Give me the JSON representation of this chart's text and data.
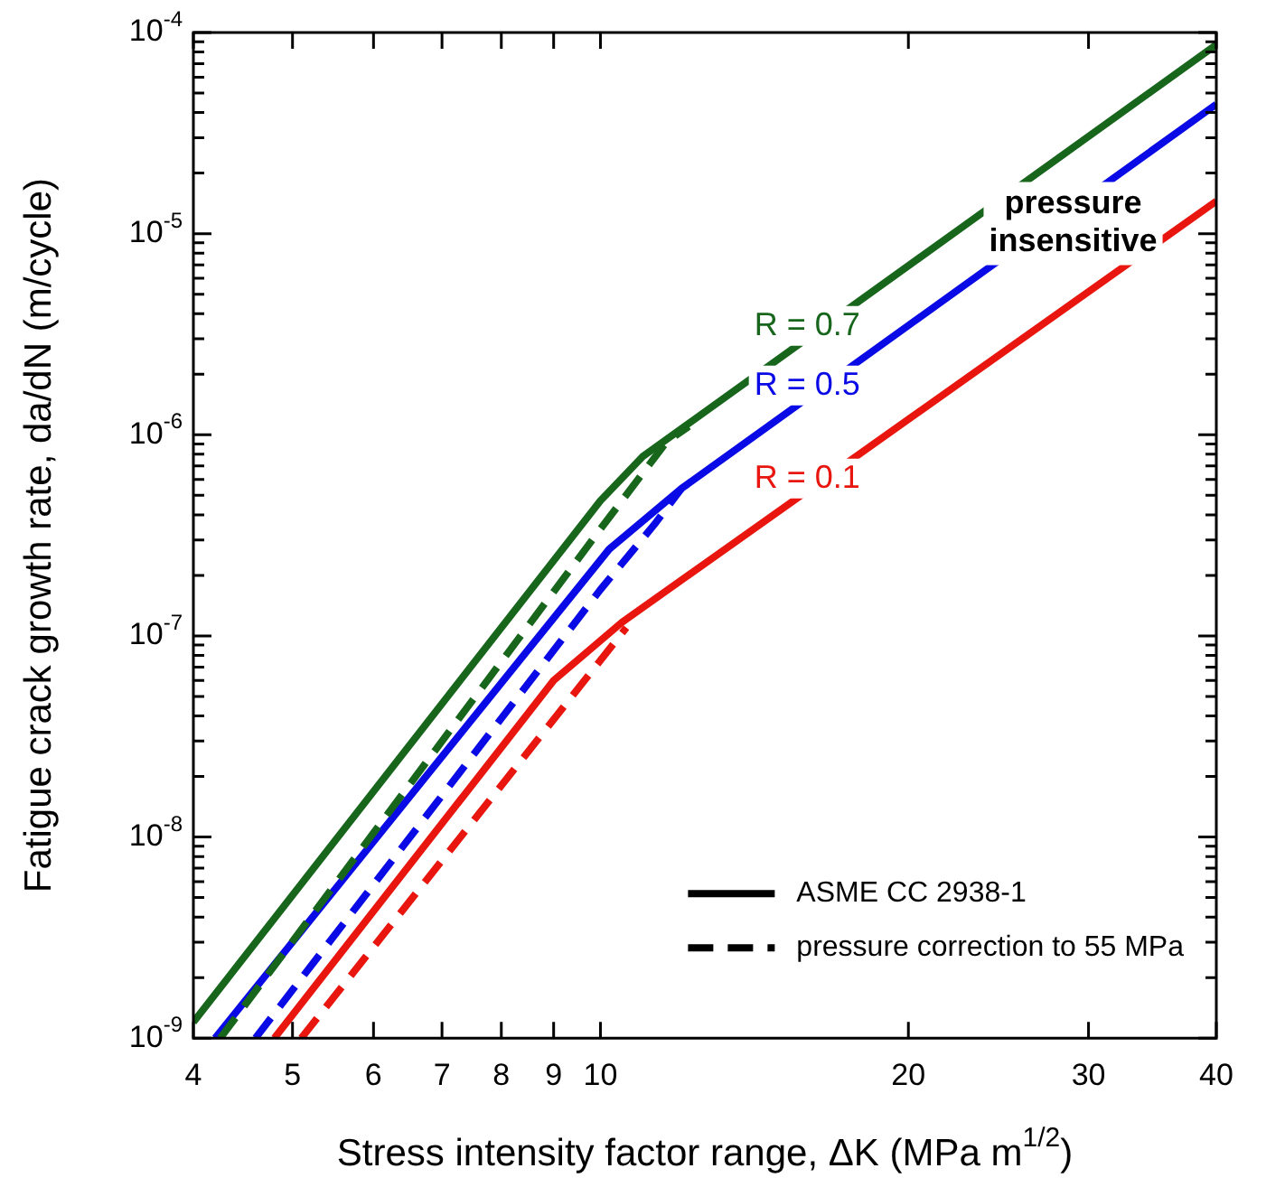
{
  "chart_data": {
    "type": "line",
    "xlabel": "Stress intensity factor range, ΔK (MPa m$^{1/2}$)",
    "ylabel": "Fatigue crack growth rate, da/dN (m/cycle)",
    "log": "xy",
    "grid": false,
    "legend": "bottom right",
    "xlim": [
      4,
      40
    ],
    "ylim": [
      1e-09,
      0.0001
    ],
    "xticks": [
      4,
      5,
      6,
      7,
      8,
      9,
      10,
      20,
      30,
      40
    ],
    "yticks": [
      {
        "value": 1e-09,
        "label": "10$^{-9}$"
      },
      {
        "value": 2e-09,
        "label": null
      },
      {
        "value": 3e-09,
        "label": null
      },
      {
        "value": 4e-09,
        "label": null
      },
      {
        "value": 5e-09,
        "label": null
      },
      {
        "value": 6e-09,
        "label": null
      },
      {
        "value": 7e-09,
        "label": null
      },
      {
        "value": 8e-09,
        "label": null
      },
      {
        "value": 9e-09,
        "label": null
      },
      {
        "value": 1e-08,
        "label": "10$^{-8}$"
      },
      {
        "value": 2e-08,
        "label": null
      },
      {
        "value": 3e-08,
        "label": null
      },
      {
        "value": 4e-08,
        "label": null
      },
      {
        "value": 5e-08,
        "label": null
      },
      {
        "value": 6e-08,
        "label": null
      },
      {
        "value": 7e-08,
        "label": null
      },
      {
        "value": 8e-08,
        "label": null
      },
      {
        "value": 9e-08,
        "label": null
      },
      {
        "value": 1e-07,
        "label": "10$^{-7}$"
      },
      {
        "value": 2e-07,
        "label": null
      },
      {
        "value": 3e-07,
        "label": null
      },
      {
        "value": 4e-07,
        "label": null
      },
      {
        "value": 5e-07,
        "label": null
      },
      {
        "value": 6e-07,
        "label": null
      },
      {
        "value": 7e-07,
        "label": null
      },
      {
        "value": 8e-07,
        "label": null
      },
      {
        "value": 9e-07,
        "label": null
      },
      {
        "value": 1e-06,
        "label": "10$^{-6}$"
      },
      {
        "value": 2e-06,
        "label": null
      },
      {
        "value": 3e-06,
        "label": null
      },
      {
        "value": 4e-06,
        "label": null
      },
      {
        "value": 5e-06,
        "label": null
      },
      {
        "value": 6e-06,
        "label": null
      },
      {
        "value": 7e-06,
        "label": null
      },
      {
        "value": 8e-06,
        "label": null
      },
      {
        "value": 9e-06,
        "label": null
      },
      {
        "value": 1e-05,
        "label": "10$^{-5}$"
      },
      {
        "value": 2e-05,
        "label": null
      },
      {
        "value": 3e-05,
        "label": null
      },
      {
        "value": 4e-05,
        "label": null
      },
      {
        "value": 5e-05,
        "label": null
      },
      {
        "value": 6e-05,
        "label": null
      },
      {
        "value": 7e-05,
        "label": null
      },
      {
        "value": 8e-05,
        "label": null
      },
      {
        "value": 9e-05,
        "label": null
      },
      {
        "value": 0.0001,
        "label": "10$^{-4}$"
      }
    ],
    "annotations": [
      "pressure insensitive"
    ],
    "series": [
      {
        "name": "R = 0.7",
        "color": "#17661c",
        "line_style": "solid",
        "x": [
          4,
          10,
          11,
          40
        ],
        "values": [
          1.2e-09,
          4.7e-07,
          7.8e-07,
          8.7e-05
        ]
      },
      {
        "color": "#17661c",
        "line_style": "dashed",
        "x": [
          4.25,
          10,
          11.6,
          12.2
        ],
        "values": [
          1e-09,
          3.4e-07,
          9.2e-07,
          1.1e-06
        ]
      },
      {
        "name": "R = 0.5",
        "color": "#0a0ae6",
        "line_style": "solid",
        "x": [
          4.2,
          10.2,
          12,
          40
        ],
        "values": [
          1e-09,
          2.7e-07,
          5.4e-07,
          4.4e-05
        ]
      },
      {
        "color": "#0a0ae6",
        "line_style": "dashed",
        "x": [
          4.6,
          10,
          11.3,
          12
        ],
        "values": [
          1e-09,
          1.7e-07,
          3.6e-07,
          5.4e-07
        ]
      },
      {
        "name": "R = 0.1",
        "color": "#e8160e",
        "line_style": "solid",
        "x": [
          4.8,
          9,
          10.5,
          40
        ],
        "values": [
          1e-09,
          6e-08,
          1.17e-07,
          1.45e-05
        ]
      },
      {
        "color": "#e8160e",
        "line_style": "dashed",
        "x": [
          5.1,
          10.6
        ],
        "values": [
          1e-09,
          1.1e-07
        ]
      },
      {
        "name": "ASME CC 2938-1",
        "color": "#000000",
        "line_style": "solid"
      },
      {
        "name": "pressure correction to 55 MPa",
        "color": "#000000",
        "line_style": "dashed"
      }
    ]
  }
}
